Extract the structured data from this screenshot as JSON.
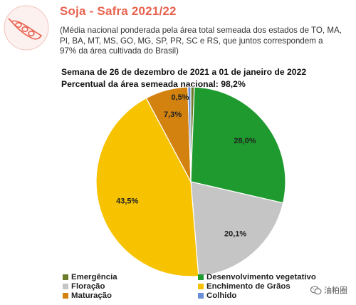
{
  "header": {
    "title": "Soja - Safra 2021/22",
    "subtitle": "(Média nacional ponderada pela área total semeada dos estados de TO, MA, PI, BA, MT, MS, GO, MG, SP, PR, SC e RS, que juntos correspondem a 97% da área cultivada do Brasil)",
    "week": "Semana de 26 de dezembro de 2021 a 01 de janeiro de 2022",
    "percent_sown": "Percentual da área semeada nacional: 98,2%"
  },
  "watermark": {
    "text": "油粕圈"
  },
  "colors": {
    "Emergência": "#6b7d2a",
    "Desenvolvimento vegetativo": "#1e9a2f",
    "Floração": "#c5c5c5",
    "Enchimento de Grãos": "#f7c300",
    "Maturação": "#d3820f",
    "Colhido": "#6b8fd6"
  },
  "chart_data": {
    "type": "pie",
    "title": "",
    "start_angle_deg": 0,
    "direction": "clockwise",
    "slices": [
      {
        "label": "Emergência",
        "value": 0.6,
        "value_label": "0,6%"
      },
      {
        "label": "Desenvolvimento vegetativo",
        "value": 28.0,
        "value_label": "28,0%"
      },
      {
        "label": "Floração",
        "value": 20.1,
        "value_label": "20,1%"
      },
      {
        "label": "Enchimento de Grãos",
        "value": 43.5,
        "value_label": "43,5%"
      },
      {
        "label": "Maturação",
        "value": 7.3,
        "value_label": "7,3%"
      },
      {
        "label": "Colhido",
        "value": 0.5,
        "value_label": "0,5%"
      }
    ],
    "legend": {
      "placement": "bottom",
      "columns": 2,
      "items": [
        "Emergência",
        "Desenvolvimento vegetativo",
        "Floração",
        "Enchimento de Grãos",
        "Maturação",
        "Colhido"
      ]
    }
  }
}
